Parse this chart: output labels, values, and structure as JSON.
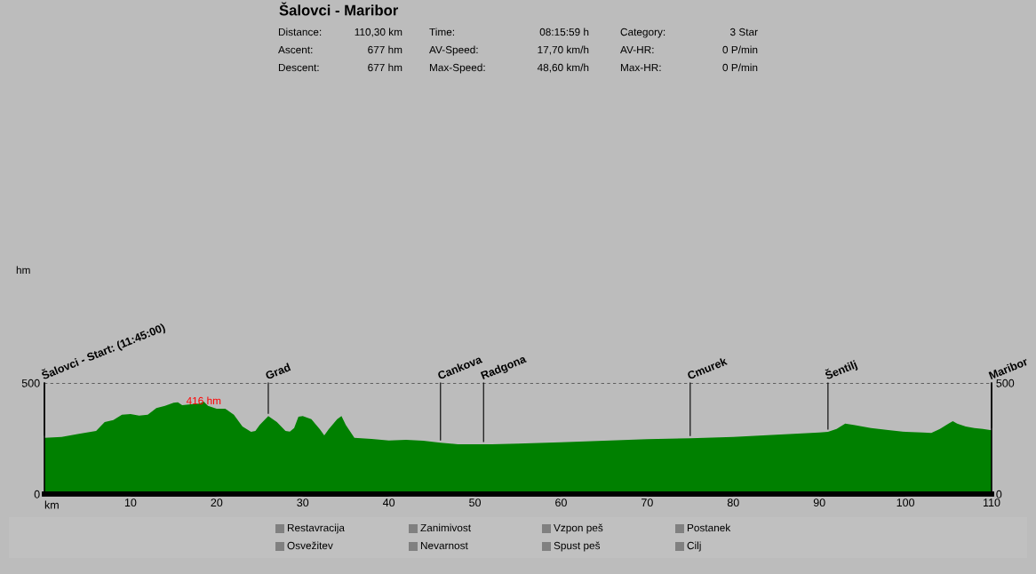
{
  "chart_data": {
    "type": "area",
    "title": "Šalovci - Maribor",
    "xlabel": "km",
    "x": [
      0,
      2,
      4,
      6,
      7,
      8,
      9,
      10,
      11,
      12,
      13,
      14,
      15,
      15.5,
      16,
      17,
      18,
      18.5,
      19,
      20,
      21,
      22,
      23,
      24,
      24.5,
      25,
      26,
      27,
      28,
      28.5,
      29,
      29.5,
      30,
      31,
      32,
      32.5,
      33,
      34,
      34.5,
      35,
      36,
      38,
      40,
      42,
      44,
      46,
      48,
      50,
      52,
      55,
      60,
      65,
      70,
      75,
      80,
      85,
      90,
      91,
      92,
      93,
      94,
      96,
      98,
      100,
      102,
      103,
      103.5,
      104,
      105,
      105.5,
      106,
      107,
      108,
      109,
      110
    ],
    "series": [
      {
        "color": "#008000",
        "values": [
          253,
          257,
          271,
          284,
          324,
          333,
          357,
          360,
          353,
          357,
          387,
          397,
          411,
          413,
          400,
          404,
          407,
          416,
          397,
          384,
          384,
          357,
          304,
          280,
          284,
          311,
          351,
          324,
          284,
          281,
          297,
          348,
          351,
          337,
          291,
          264,
          291,
          337,
          351,
          311,
          253,
          248,
          241,
          244,
          240,
          231,
          224,
          224,
          224,
          227,
          233,
          240,
          247,
          251,
          257,
          267,
          277,
          280,
          293,
          317,
          311,
          297,
          288,
          280,
          277,
          275,
          284,
          293,
          317,
          328,
          317,
          304,
          297,
          293,
          287
        ]
      }
    ],
    "xlim": [
      0,
      110
    ],
    "xticks": [
      10,
      20,
      30,
      40,
      50,
      60,
      70,
      80,
      90,
      100,
      110
    ],
    "ylim": [
      0,
      500
    ],
    "yticks": [
      0,
      500
    ],
    "y2lim": [
      0,
      500
    ],
    "y2ticks": [
      0,
      500
    ],
    "ref_lines": [
      {
        "axis": "y",
        "value": 500,
        "label": null,
        "color": "#000000",
        "line_style": "dashed"
      }
    ],
    "annotations": [
      "Distance:",
      "110,30 km",
      "Time:",
      "08:15:59 h",
      "Category:",
      "3 Star",
      "Ascent:",
      "677 hm",
      "AV-Speed:",
      "17,70 km/h",
      "AV-HR:",
      "0 P/min",
      "Descent:",
      "677 hm",
      "Max-Speed:",
      "48,60 km/h",
      "Max-HR:",
      "0 P/min",
      "Restavracija",
      "Osvežitev",
      "Zanimivost",
      "Nevarnost",
      "Vzpon peš",
      "Spust peš",
      "Postanek",
      "Cilj",
      "hm",
      {
        "text": "416 hm",
        "x": 18.5,
        "y": 416
      },
      {
        "text": "Šalovci - Start: (11:45:00)",
        "x": 0,
        "y": 500
      },
      {
        "text": "Grad",
        "x": 26,
        "y": 500
      },
      {
        "text": "Cankova",
        "x": 46,
        "y": 500
      },
      {
        "text": "Radgona",
        "x": 51,
        "y": 500
      },
      {
        "text": "Cmurek",
        "x": 75,
        "y": 500
      },
      {
        "text": "Šentilj",
        "x": 91,
        "y": 500
      },
      {
        "text": "Maribor",
        "x": 110,
        "y": 500
      }
    ]
  }
}
